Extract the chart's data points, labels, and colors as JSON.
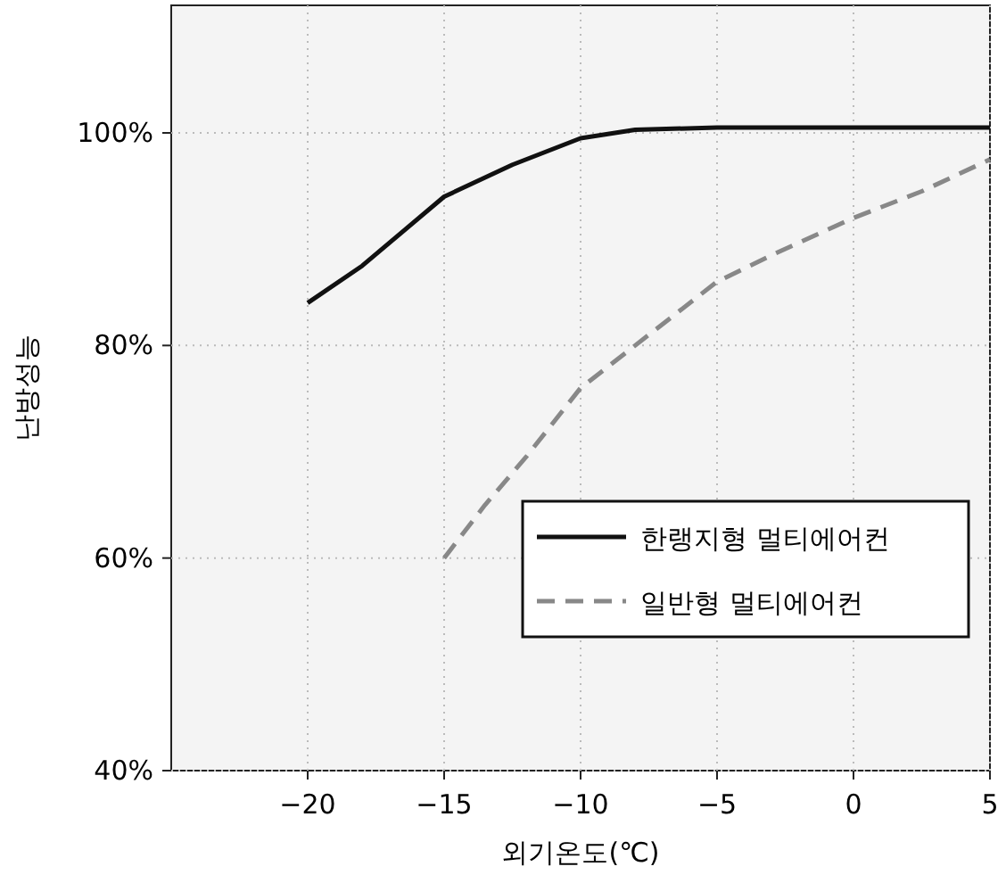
{
  "chart_data": {
    "type": "line",
    "xlabel": "외기온도(℃)",
    "ylabel": "난방성능",
    "xlim": [
      -25,
      5
    ],
    "xticks": [
      -20,
      -15,
      -10,
      -5,
      0,
      5
    ],
    "ylim": [
      40,
      112
    ],
    "yticks": [
      {
        "value": 40,
        "label": "40%"
      },
      {
        "value": 60,
        "label": "60%"
      },
      {
        "value": 80,
        "label": "80%"
      },
      {
        "value": 100,
        "label": "100%"
      }
    ],
    "grid": true,
    "legend": "bottom right",
    "series": [
      {
        "name": "한랭지형 멀티에어컨",
        "color": "#111111",
        "line_style": "solid",
        "x": [
          -20,
          -18,
          -15,
          -12.5,
          -10,
          -8,
          -5,
          0,
          5
        ],
        "values": [
          84,
          87.5,
          94,
          97,
          99.5,
          100.3,
          100.5,
          100.5,
          100.5
        ]
      },
      {
        "name": "일반형 멀티에어컨",
        "color": "#888888",
        "line_style": "dashed",
        "x": [
          -15,
          -13.5,
          -12,
          -10,
          -7.5,
          -5,
          -3,
          0,
          2.5,
          5
        ],
        "values": [
          60,
          65,
          69.5,
          76,
          81,
          86,
          88.5,
          92,
          94.5,
          97.5
        ]
      }
    ]
  }
}
